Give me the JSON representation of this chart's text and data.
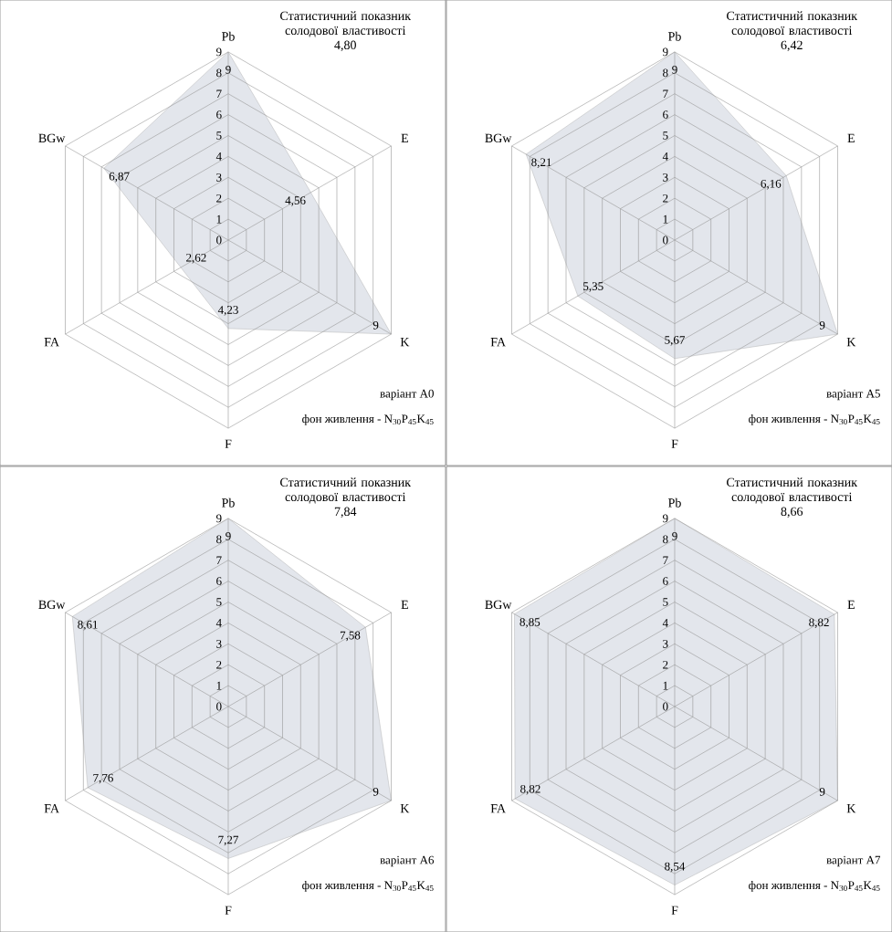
{
  "chart_data": [
    {
      "type": "radar",
      "title": "Статистичний показник солодової властивості",
      "subtitle": "4,80",
      "categories": [
        "Pb",
        "E",
        "K",
        "F",
        "FA",
        "BGw"
      ],
      "ylim": [
        0,
        9
      ],
      "yticks": [
        0,
        1,
        2,
        3,
        4,
        5,
        6,
        7,
        8,
        9
      ],
      "grid": true,
      "series": [
        {
          "color": "#e3e6ec",
          "values": [
            9,
            4.56,
            9,
            4.23,
            2.62,
            6.87
          ],
          "value_labels": [
            "9",
            "4,56",
            "9",
            "4,23",
            "2,62",
            "6,87"
          ]
        }
      ],
      "annotations": [
        "варіант A0",
        "фон живлення - N$_{30}$P$_{45}$K$_{45}$"
      ]
    },
    {
      "type": "radar",
      "title": "Статистичний показник солодової властивості",
      "subtitle": "6,42",
      "categories": [
        "Pb",
        "E",
        "K",
        "F",
        "FA",
        "BGw"
      ],
      "ylim": [
        0,
        9
      ],
      "yticks": [
        0,
        1,
        2,
        3,
        4,
        5,
        6,
        7,
        8,
        9
      ],
      "grid": true,
      "series": [
        {
          "color": "#e3e6ec",
          "values": [
            9,
            6.16,
            9,
            5.67,
            5.35,
            8.21
          ],
          "value_labels": [
            "9",
            "6,16",
            "9",
            "5,67",
            "5,35",
            "8,21"
          ]
        }
      ],
      "annotations": [
        "варіант A5",
        "фон живлення - N$_{30}$P$_{45}$K$_{45}$"
      ]
    },
    {
      "type": "radar",
      "title": "Статистичний показник солодової властивості",
      "subtitle": "7,84",
      "categories": [
        "Pb",
        "E",
        "K",
        "F",
        "FA",
        "BGw"
      ],
      "ylim": [
        0,
        9
      ],
      "yticks": [
        0,
        1,
        2,
        3,
        4,
        5,
        6,
        7,
        8,
        9
      ],
      "grid": true,
      "series": [
        {
          "color": "#e3e6ec",
          "values": [
            9,
            7.58,
            9,
            7.27,
            7.76,
            8.61
          ],
          "value_labels": [
            "9",
            "7,58",
            "9",
            "7,27",
            "7,76",
            "8,61"
          ]
        }
      ],
      "annotations": [
        "варіант A6",
        "фон живлення - N$_{30}$P$_{45}$K$_{45}$"
      ]
    },
    {
      "type": "radar",
      "title": "Статистичний показник солодової властивості",
      "subtitle": "8,66",
      "categories": [
        "Pb",
        "E",
        "K",
        "F",
        "FA",
        "BGw"
      ],
      "ylim": [
        0,
        9
      ],
      "yticks": [
        0,
        1,
        2,
        3,
        4,
        5,
        6,
        7,
        8,
        9
      ],
      "grid": true,
      "series": [
        {
          "color": "#e3e6ec",
          "values": [
            9,
            8.82,
            9,
            8.54,
            8.82,
            8.85
          ],
          "value_labels": [
            "9",
            "8,82",
            "9",
            "8,54",
            "8,82",
            "8,85"
          ]
        }
      ],
      "annotations": [
        "варіант A7",
        "фон живлення - N$_{30}$P$_{45}$K$_{45}$"
      ]
    }
  ]
}
